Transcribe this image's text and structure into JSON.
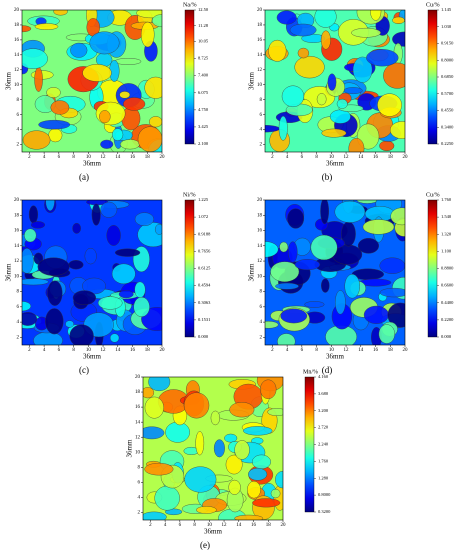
{
  "chart_data": [
    {
      "type": "contour",
      "panel_label": "(a)",
      "colorbar_title": "Na/%",
      "xlabel": "36mm",
      "ylabel": "36mm",
      "xlim": [
        1,
        20
      ],
      "ylim": [
        1,
        20
      ],
      "xticks": [
        2,
        4,
        6,
        8,
        10,
        12,
        14,
        16,
        18,
        20
      ],
      "yticks": [
        2,
        4,
        6,
        8,
        10,
        12,
        14,
        16,
        18,
        20
      ],
      "colorbar_lim": [
        2.1,
        12.5
      ],
      "colorbar_ticks": [
        {
          "value": 12.5,
          "label": "12.50"
        },
        11.28,
        10.05,
        8.725,
        {
          "value": 7.4,
          "label": "7.400"
        },
        6.075,
        {
          "value": 4.75,
          "label": "4.750"
        },
        3.425,
        {
          "value": 2.1,
          "label": "2.100"
        }
      ]
    },
    {
      "type": "contour",
      "panel_label": "(b)",
      "colorbar_title": "Cu/%",
      "xlabel": "36mm",
      "ylabel": "36mm",
      "xlim": [
        1,
        20
      ],
      "ylim": [
        1,
        20
      ],
      "xticks": [
        2,
        4,
        6,
        8,
        10,
        12,
        14,
        16,
        18,
        20
      ],
      "yticks": [
        2,
        4,
        6,
        8,
        10,
        12,
        14,
        16,
        18,
        20
      ],
      "colorbar_lim": [
        0.225,
        1.145
      ],
      "colorbar_ticks": [
        1.145,
        {
          "value": 1.03,
          "label": "1.030"
        },
        {
          "value": 0.915,
          "label": "0.9150"
        },
        {
          "value": 0.8,
          "label": "0.8000"
        },
        {
          "value": 0.685,
          "label": "0.6850"
        },
        {
          "value": 0.57,
          "label": "0.5700"
        },
        {
          "value": 0.455,
          "label": "0.4550"
        },
        {
          "value": 0.34,
          "label": "0.3400"
        },
        {
          "value": 0.225,
          "label": "0.2250"
        }
      ]
    },
    {
      "type": "contour",
      "panel_label": "(c)",
      "colorbar_title": "Ni/%",
      "xlabel": "36mm",
      "ylabel": "36mm",
      "xlim": [
        1,
        20
      ],
      "ylim": [
        1,
        20
      ],
      "xticks": [
        2,
        4,
        6,
        8,
        10,
        12,
        14,
        16,
        18,
        20
      ],
      "yticks": [
        2,
        4,
        6,
        8,
        10,
        12,
        14,
        16,
        18,
        20
      ],
      "colorbar_lim": [
        0,
        1.225
      ],
      "colorbar_ticks": [
        1.225,
        1.072,
        0.9188,
        0.7656,
        {
          "value": 0.6125,
          "label": "0.6125"
        },
        0.4594,
        0.3063,
        0.1531,
        {
          "value": 0,
          "label": "0.000"
        }
      ]
    },
    {
      "type": "contour",
      "panel_label": "(d)",
      "colorbar_title": "Cu/%",
      "xlabel": "36mm",
      "ylabel": "36mm",
      "xlim": [
        1,
        20
      ],
      "ylim": [
        1,
        20
      ],
      "xticks": [
        2,
        4,
        6,
        8,
        10,
        12,
        14,
        16,
        18,
        20
      ],
      "yticks": [
        2,
        4,
        6,
        8,
        10,
        12,
        14,
        16,
        18,
        20
      ],
      "colorbar_lim": [
        0,
        1.76
      ],
      "colorbar_ticks": [
        {
          "value": 1.76,
          "label": "1.760"
        },
        {
          "value": 1.54,
          "label": "1.540"
        },
        {
          "value": 1.32,
          "label": "1.320"
        },
        {
          "value": 1.1,
          "label": "1.100"
        },
        {
          "value": 0.88,
          "label": "0.8800"
        },
        {
          "value": 0.66,
          "label": "0.6600"
        },
        {
          "value": 0.44,
          "label": "0.4400"
        },
        {
          "value": 0.22,
          "label": "0.2200"
        },
        {
          "value": 0,
          "label": "0.000"
        }
      ]
    },
    {
      "type": "contour",
      "panel_label": "(e)",
      "colorbar_title": "Mn/%",
      "xlabel": "36mm",
      "ylabel": "36mm",
      "xlim": [
        1,
        20
      ],
      "ylim": [
        1,
        20
      ],
      "xticks": [
        2,
        4,
        6,
        8,
        10,
        12,
        14,
        16,
        18,
        20
      ],
      "yticks": [
        2,
        4,
        6,
        8,
        10,
        12,
        14,
        16,
        18,
        20
      ],
      "colorbar_lim": [
        0.32,
        4.16
      ],
      "colorbar_ticks": [
        {
          "value": 4.16,
          "label": "4.160"
        },
        {
          "value": 3.68,
          "label": "3.680"
        },
        {
          "value": 3.2,
          "label": "3.200"
        },
        {
          "value": 2.72,
          "label": "2.720"
        },
        {
          "value": 2.24,
          "label": "2.240"
        },
        {
          "value": 1.76,
          "label": "1.760"
        },
        {
          "value": 1.28,
          "label": "1.280"
        },
        {
          "value": 0.8,
          "label": "0.8000"
        },
        {
          "value": 0.32,
          "label": "0.3200"
        }
      ]
    }
  ]
}
